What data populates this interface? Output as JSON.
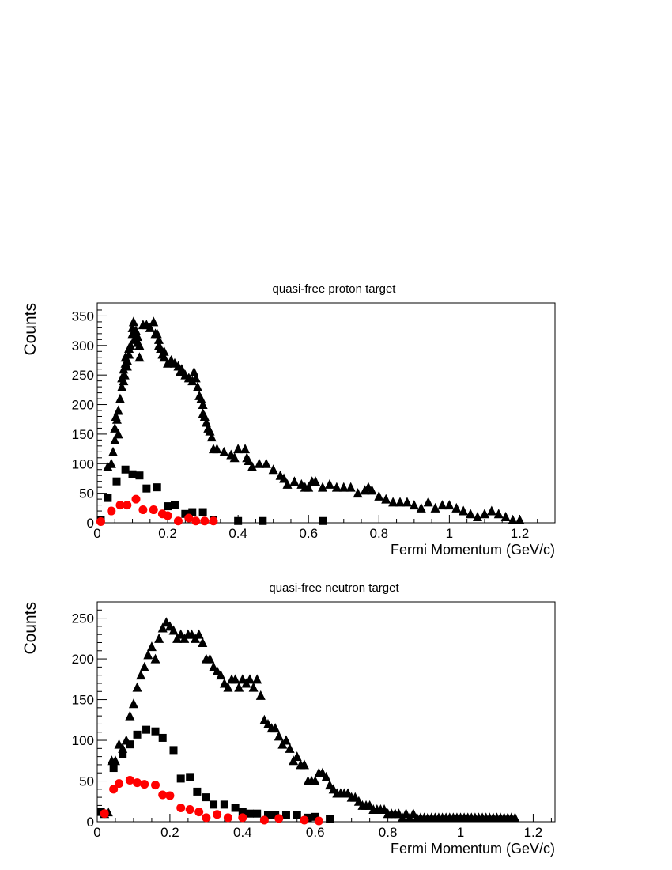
{
  "chart_data": [
    {
      "type": "scatter",
      "title": "quasi-free proton target",
      "xlabel": "Fermi Momentum (GeV/c)",
      "ylabel": "Counts",
      "xlim": [
        0,
        1.3
      ],
      "ylim": [
        0,
        372
      ],
      "xticks": [
        0,
        0.2,
        0.4,
        0.6,
        0.8,
        1,
        1.2
      ],
      "xtick_labels": [
        "0",
        "0.2",
        "0.4",
        "0.6",
        "0.8",
        "1",
        "1.2"
      ],
      "yticks": [
        0,
        50,
        100,
        150,
        200,
        250,
        300,
        350
      ],
      "ytick_labels": [
        "0",
        "50",
        "100",
        "150",
        "200",
        "250",
        "300",
        "350"
      ],
      "grid": false,
      "series": [
        {
          "marker": "triangle",
          "color": "#000000",
          "x": [
            0.03,
            0.04,
            0.045,
            0.05,
            0.05,
            0.053,
            0.056,
            0.06,
            0.06,
            0.065,
            0.07,
            0.07,
            0.075,
            0.075,
            0.078,
            0.08,
            0.08,
            0.085,
            0.085,
            0.09,
            0.09,
            0.095,
            0.1,
            0.1,
            0.103,
            0.105,
            0.11,
            0.11,
            0.115,
            0.115,
            0.12,
            0.12,
            0.13,
            0.14,
            0.15,
            0.16,
            0.165,
            0.17,
            0.175,
            0.175,
            0.18,
            0.185,
            0.19,
            0.19,
            0.2,
            0.21,
            0.22,
            0.23,
            0.235,
            0.24,
            0.25,
            0.26,
            0.27,
            0.275,
            0.28,
            0.285,
            0.29,
            0.295,
            0.3,
            0.3,
            0.305,
            0.31,
            0.315,
            0.32,
            0.325,
            0.33,
            0.34,
            0.36,
            0.38,
            0.39,
            0.4,
            0.42,
            0.425,
            0.43,
            0.44,
            0.46,
            0.48,
            0.5,
            0.52,
            0.53,
            0.54,
            0.56,
            0.58,
            0.59,
            0.6,
            0.61,
            0.62,
            0.64,
            0.66,
            0.68,
            0.7,
            0.72,
            0.74,
            0.76,
            0.77,
            0.78,
            0.8,
            0.82,
            0.84,
            0.86,
            0.88,
            0.9,
            0.92,
            0.94,
            0.96,
            0.98,
            1.0,
            1.02,
            1.04,
            1.06,
            1.08,
            1.1,
            1.12,
            1.14,
            1.16,
            1.18,
            1.2
          ],
          "y": [
            95,
            100,
            120,
            140,
            160,
            180,
            175,
            150,
            190,
            210,
            230,
            245,
            240,
            260,
            250,
            270,
            280,
            275,
            265,
            295,
            285,
            300,
            320,
            330,
            340,
            310,
            320,
            325,
            315,
            305,
            300,
            280,
            335,
            335,
            330,
            340,
            320,
            320,
            310,
            300,
            295,
            285,
            290,
            280,
            270,
            275,
            270,
            265,
            255,
            260,
            250,
            245,
            240,
            255,
            245,
            230,
            215,
            210,
            200,
            185,
            180,
            170,
            160,
            155,
            145,
            125,
            125,
            120,
            115,
            110,
            125,
            125,
            110,
            105,
            95,
            100,
            100,
            90,
            80,
            75,
            65,
            70,
            65,
            60,
            60,
            70,
            70,
            60,
            65,
            60,
            60,
            60,
            50,
            55,
            60,
            55,
            45,
            40,
            35,
            35,
            35,
            30,
            25,
            35,
            25,
            30,
            30,
            25,
            20,
            15,
            10,
            15,
            20,
            15,
            10,
            5,
            5
          ]
        },
        {
          "marker": "square",
          "color": "#000000",
          "x": [
            0.01,
            0.03,
            0.055,
            0.08,
            0.1,
            0.12,
            0.14,
            0.17,
            0.2,
            0.22,
            0.25,
            0.27,
            0.3,
            0.33,
            0.4,
            0.47,
            0.64
          ],
          "y": [
            5,
            42,
            70,
            90,
            82,
            80,
            58,
            60,
            28,
            30,
            15,
            18,
            18,
            5,
            3,
            3,
            3
          ]
        },
        {
          "marker": "circle",
          "color": "#ff0000",
          "x": [
            0.01,
            0.04,
            0.065,
            0.085,
            0.11,
            0.13,
            0.16,
            0.185,
            0.2,
            0.23,
            0.26,
            0.28,
            0.305,
            0.33
          ],
          "y": [
            2,
            20,
            30,
            30,
            40,
            22,
            22,
            15,
            12,
            3,
            8,
            3,
            3,
            3
          ]
        }
      ]
    },
    {
      "type": "scatter",
      "title": "quasi-free neutron target",
      "xlabel": "Fermi Momentum (GeV/c)",
      "ylabel": "Counts",
      "xlim": [
        0,
        1.26
      ],
      "ylim": [
        0,
        270
      ],
      "xticks": [
        0,
        0.2,
        0.4,
        0.6,
        0.8,
        1,
        1.2
      ],
      "xtick_labels": [
        "0",
        "0.2",
        "0.4",
        "0.6",
        "0.8",
        "1",
        "1.2"
      ],
      "yticks": [
        0,
        50,
        100,
        150,
        200,
        250
      ],
      "ytick_labels": [
        "0",
        "50",
        "100",
        "150",
        "200",
        "250"
      ],
      "grid": false,
      "series": [
        {
          "marker": "triangle",
          "color": "#000000",
          "x": [
            0.02,
            0.03,
            0.04,
            0.05,
            0.06,
            0.07,
            0.08,
            0.09,
            0.1,
            0.11,
            0.12,
            0.13,
            0.14,
            0.15,
            0.16,
            0.17,
            0.18,
            0.19,
            0.2,
            0.21,
            0.22,
            0.23,
            0.24,
            0.25,
            0.26,
            0.27,
            0.28,
            0.29,
            0.3,
            0.31,
            0.32,
            0.33,
            0.34,
            0.35,
            0.36,
            0.37,
            0.38,
            0.39,
            0.4,
            0.41,
            0.42,
            0.43,
            0.44,
            0.45,
            0.46,
            0.47,
            0.48,
            0.49,
            0.5,
            0.51,
            0.52,
            0.53,
            0.54,
            0.55,
            0.56,
            0.57,
            0.58,
            0.59,
            0.6,
            0.61,
            0.62,
            0.63,
            0.64,
            0.65,
            0.66,
            0.67,
            0.68,
            0.69,
            0.7,
            0.71,
            0.72,
            0.73,
            0.74,
            0.75,
            0.76,
            0.77,
            0.78,
            0.79,
            0.8,
            0.81,
            0.82,
            0.83,
            0.84,
            0.85,
            0.86,
            0.87,
            0.88,
            0.89,
            0.9,
            0.91,
            0.92,
            0.93,
            0.94,
            0.95,
            0.96,
            0.97,
            0.98,
            0.99,
            1.0,
            1.01,
            1.02,
            1.03,
            1.04,
            1.05,
            1.06,
            1.07,
            1.08,
            1.09,
            1.1,
            1.11,
            1.12,
            1.13,
            1.14,
            1.15
          ],
          "y": [
            10,
            12,
            75,
            75,
            95,
            90,
            100,
            130,
            145,
            165,
            180,
            190,
            205,
            215,
            200,
            225,
            238,
            245,
            240,
            235,
            225,
            230,
            225,
            230,
            230,
            225,
            230,
            220,
            200,
            200,
            190,
            185,
            180,
            170,
            165,
            175,
            175,
            165,
            175,
            170,
            175,
            165,
            175,
            155,
            125,
            120,
            115,
            115,
            105,
            95,
            100,
            90,
            75,
            80,
            70,
            70,
            50,
            50,
            50,
            60,
            60,
            55,
            45,
            40,
            35,
            35,
            35,
            35,
            30,
            30,
            25,
            20,
            20,
            20,
            15,
            15,
            15,
            15,
            10,
            10,
            10,
            10,
            5,
            10,
            5,
            10,
            5,
            5,
            5,
            5,
            5,
            5,
            5,
            5,
            5,
            5,
            5,
            5,
            5,
            5,
            5,
            5,
            5,
            5,
            5,
            5,
            5,
            5,
            5,
            5,
            5,
            5,
            5,
            5
          ]
        },
        {
          "marker": "square",
          "color": "#000000",
          "x": [
            0.01,
            0.045,
            0.07,
            0.09,
            0.11,
            0.135,
            0.16,
            0.18,
            0.21,
            0.23,
            0.255,
            0.275,
            0.3,
            0.32,
            0.35,
            0.38,
            0.4,
            0.42,
            0.44,
            0.47,
            0.49,
            0.52,
            0.55,
            0.58,
            0.6,
            0.64
          ],
          "y": [
            12,
            66,
            83,
            95,
            107,
            113,
            111,
            103,
            88,
            53,
            55,
            37,
            30,
            21,
            21,
            17,
            12,
            10,
            10,
            8,
            8,
            8,
            8,
            5,
            6,
            3
          ]
        },
        {
          "marker": "circle",
          "color": "#ff0000",
          "x": [
            0.02,
            0.045,
            0.06,
            0.09,
            0.11,
            0.13,
            0.16,
            0.18,
            0.2,
            0.23,
            0.255,
            0.28,
            0.3,
            0.33,
            0.36,
            0.4,
            0.46,
            0.5,
            0.57,
            0.61
          ],
          "y": [
            10,
            40,
            47,
            51,
            48,
            46,
            45,
            33,
            32,
            17,
            15,
            12,
            5,
            9,
            5,
            5,
            2,
            4,
            2,
            1
          ]
        }
      ]
    }
  ]
}
